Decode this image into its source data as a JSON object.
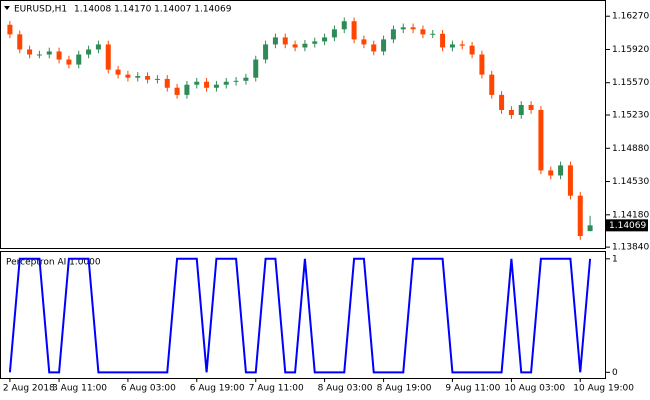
{
  "chart_data": [
    {
      "type": "candlestick",
      "title": "EURUSD,H1",
      "ohlc_label": "1.14008 1.14170 1.14007 1.14069",
      "up_color": "#2e8b57",
      "down_color": "#ff4500",
      "categories": [
        "2 Aug 2018",
        null,
        null,
        null,
        null,
        "3 Aug 11:00",
        null,
        null,
        null,
        null,
        null,
        null,
        "6 Aug 03:00",
        null,
        null,
        null,
        null,
        null,
        null,
        "6 Aug 19:00",
        null,
        null,
        null,
        null,
        null,
        "7 Aug 11:00",
        null,
        null,
        null,
        null,
        null,
        null,
        "8 Aug 03:00",
        null,
        null,
        null,
        null,
        null,
        "8 Aug 19:00",
        null,
        null,
        null,
        null,
        null,
        null,
        "9 Aug 11:00",
        null,
        null,
        null,
        null,
        null,
        "10 Aug 03:00",
        null,
        null,
        null,
        null,
        null,
        null,
        "10 Aug 19:00",
        null
      ],
      "open": [
        1.1618,
        1.16079,
        1.1592,
        1.15867,
        1.15867,
        1.15899,
        1.15814,
        1.15761,
        1.15867,
        1.1592,
        1.15973,
        1.15708,
        1.15655,
        1.15623,
        1.1564,
        1.15602,
        1.1561,
        1.15517,
        1.15442,
        1.15549,
        1.1558,
        1.15517,
        1.15549,
        1.1558,
        1.1559,
        1.15623,
        1.15814,
        1.15973,
        1.16047,
        1.15973,
        1.15941,
        1.1598,
        1.16005,
        1.16047,
        1.16132,
        1.16217,
        1.16026,
        1.15973,
        1.15899,
        1.16026,
        1.16132,
        1.16153,
        1.16132,
        1.16079,
        1.16085,
        1.15941,
        1.15973,
        1.1596,
        1.15867,
        1.15655,
        1.15442,
        1.15283,
        1.1523,
        1.15336,
        1.15283,
        1.14647,
        1.14594,
        1.147,
        1.14381,
        1.14008
      ],
      "high": [
        1.1622,
        1.16119,
        1.1596,
        1.15907,
        1.15939,
        1.15939,
        1.15854,
        1.15907,
        1.1596,
        1.16013,
        1.16013,
        1.15748,
        1.15695,
        1.1568,
        1.1568,
        1.1565,
        1.1565,
        1.15557,
        1.15589,
        1.1562,
        1.1562,
        1.15589,
        1.1562,
        1.1563,
        1.15663,
        1.15854,
        1.16013,
        1.16087,
        1.16087,
        1.16013,
        1.1602,
        1.16045,
        1.16087,
        1.16172,
        1.16257,
        1.16257,
        1.16066,
        1.16013,
        1.16066,
        1.16172,
        1.16193,
        1.16193,
        1.16172,
        1.16125,
        1.16125,
        1.16013,
        1.16013,
        1.16,
        1.15907,
        1.15695,
        1.15482,
        1.15323,
        1.15376,
        1.15376,
        1.15323,
        1.14687,
        1.1474,
        1.1474,
        1.14421,
        1.1417
      ],
      "low": [
        1.16039,
        1.1588,
        1.15827,
        1.15827,
        1.15827,
        1.15774,
        1.15721,
        1.15721,
        1.15827,
        1.1588,
        1.15668,
        1.15615,
        1.15583,
        1.15583,
        1.15562,
        1.15562,
        1.15477,
        1.15402,
        1.15402,
        1.15509,
        1.15477,
        1.15477,
        1.15509,
        1.1554,
        1.1555,
        1.15583,
        1.15774,
        1.15933,
        1.15933,
        1.15901,
        1.15901,
        1.1594,
        1.15965,
        1.16007,
        1.16092,
        1.15986,
        1.15933,
        1.15859,
        1.15859,
        1.15986,
        1.16092,
        1.16092,
        1.16039,
        1.16039,
        1.15901,
        1.15901,
        1.1592,
        1.15827,
        1.15615,
        1.15402,
        1.15243,
        1.1519,
        1.1519,
        1.15243,
        1.14607,
        1.14554,
        1.14554,
        1.14341,
        1.13917,
        1.14007
      ],
      "close": [
        1.16079,
        1.1592,
        1.15867,
        1.15867,
        1.15899,
        1.15814,
        1.15761,
        1.15867,
        1.1592,
        1.15973,
        1.15708,
        1.15655,
        1.15623,
        1.1564,
        1.15602,
        1.1561,
        1.15517,
        1.15442,
        1.15549,
        1.1558,
        1.15517,
        1.15549,
        1.1558,
        1.1559,
        1.15623,
        1.15814,
        1.15973,
        1.16047,
        1.15973,
        1.15941,
        1.1598,
        1.16005,
        1.16047,
        1.16132,
        1.16217,
        1.16026,
        1.15973,
        1.15899,
        1.16026,
        1.16132,
        1.16153,
        1.16132,
        1.16079,
        1.16085,
        1.15941,
        1.15973,
        1.1596,
        1.15867,
        1.15655,
        1.15442,
        1.15283,
        1.1523,
        1.15336,
        1.15283,
        1.14647,
        1.14594,
        1.147,
        1.14381,
        1.13957,
        1.14069
      ],
      "ylim": [
        1.1382,
        1.1643
      ],
      "yticks": [
        {
          "value": 1.1627,
          "label": "1.16270"
        },
        {
          "value": 1.1592,
          "label": "1.15920"
        },
        {
          "value": 1.1557,
          "label": "1.15570"
        },
        {
          "value": 1.1523,
          "label": "1.15230"
        },
        {
          "value": 1.1488,
          "label": "1.14880"
        },
        {
          "value": 1.1453,
          "label": "1.14530"
        },
        {
          "value": 1.1418,
          "label": "1.14180"
        },
        {
          "value": 1.1384,
          "label": "1.13840"
        }
      ]
    },
    {
      "type": "line",
      "title": "Perceptron AI  1.0000",
      "color": "#0000ff",
      "values": [
        0,
        1,
        1,
        1,
        0,
        0,
        1,
        1,
        1,
        0,
        0,
        0,
        0,
        0,
        0,
        0,
        0,
        1,
        1,
        1,
        0,
        1,
        1,
        1,
        0,
        0,
        1,
        1,
        0,
        0,
        1,
        0,
        0,
        0,
        0,
        1,
        1,
        0,
        0,
        0,
        0,
        1,
        1,
        1,
        1,
        0,
        0,
        0,
        0,
        0,
        0,
        1,
        0,
        0,
        1,
        1,
        1,
        1,
        0,
        1
      ],
      "ylim": [
        -0.05,
        1.06
      ],
      "yticks": [
        0,
        1
      ]
    }
  ]
}
